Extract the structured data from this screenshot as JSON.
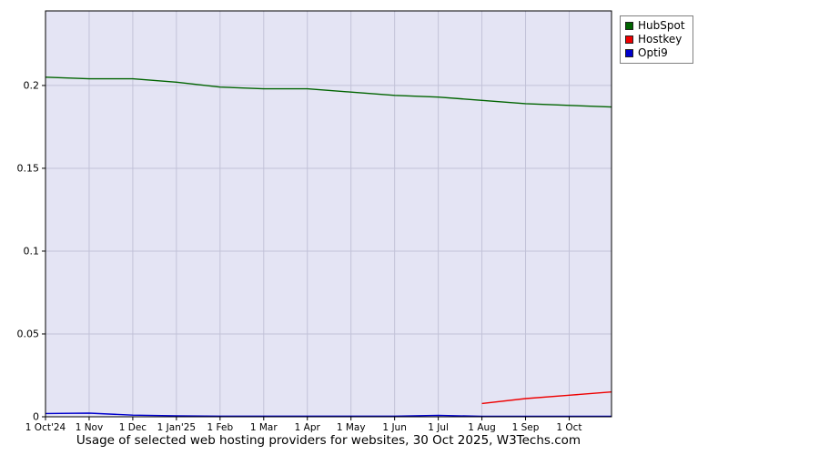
{
  "title": "Usage of selected web hosting providers for websites, 30 Oct 2025, W3Techs.com",
  "legend": {
    "items": [
      {
        "label": "HubSpot",
        "color": "#006400"
      },
      {
        "label": "Hostkey",
        "color": "#ee0000"
      },
      {
        "label": "Opti9",
        "color": "#0000cc"
      }
    ]
  },
  "chart_data": {
    "type": "line",
    "title": "Usage of selected web hosting providers for websites, 30 Oct 2025, W3Techs.com",
    "xlabel": "",
    "ylabel": "",
    "x_tick_labels": [
      "1 Oct'24",
      "1 Nov",
      "1 Dec",
      "1 Jan'25",
      "1 Feb",
      "1 Mar",
      "1 Apr",
      "1 May",
      "1 Jun",
      "1 Jul",
      "1 Aug",
      "1 Sep",
      "1 Oct"
    ],
    "x_tick_positions": [
      0,
      1,
      2,
      3,
      4,
      5,
      6,
      7,
      8,
      9,
      10,
      11,
      12
    ],
    "x_range": [
      0,
      12.97
    ],
    "y_ticks": [
      0,
      0.05,
      0.1,
      0.15,
      0.2
    ],
    "y_tick_labels": [
      "0",
      "0.05",
      "0.1",
      "0.15",
      "0.2"
    ],
    "ylim": [
      0,
      0.245
    ],
    "grid": true,
    "legend_position": "top-right-outside",
    "plot_bg": "#e4e4f4",
    "grid_color": "#c2c2d8",
    "axis_color": "#000000",
    "series": [
      {
        "name": "HubSpot",
        "color": "#006400",
        "x": [
          0,
          1,
          2,
          3,
          4,
          5,
          6,
          7,
          8,
          9,
          10,
          11,
          12,
          12.97
        ],
        "values": [
          0.205,
          0.204,
          0.204,
          0.202,
          0.199,
          0.198,
          0.198,
          0.196,
          0.194,
          0.193,
          0.191,
          0.189,
          0.188,
          0.187
        ]
      },
      {
        "name": "Hostkey",
        "color": "#ee0000",
        "x": [
          10,
          11,
          12,
          12.97
        ],
        "values": [
          0.008,
          0.011,
          0.013,
          0.015
        ]
      },
      {
        "name": "Opti9",
        "color": "#0000cc",
        "x": [
          0,
          1,
          2,
          3,
          4,
          5,
          6,
          7,
          8,
          9,
          10,
          11,
          12,
          12.97
        ],
        "values": [
          0.002,
          0.0022,
          0.001,
          0.0006,
          0.0004,
          0.0004,
          0.0004,
          0.0004,
          0.0004,
          0.0009,
          0.0003,
          0.0003,
          0.0003,
          0.0003
        ]
      }
    ]
  }
}
